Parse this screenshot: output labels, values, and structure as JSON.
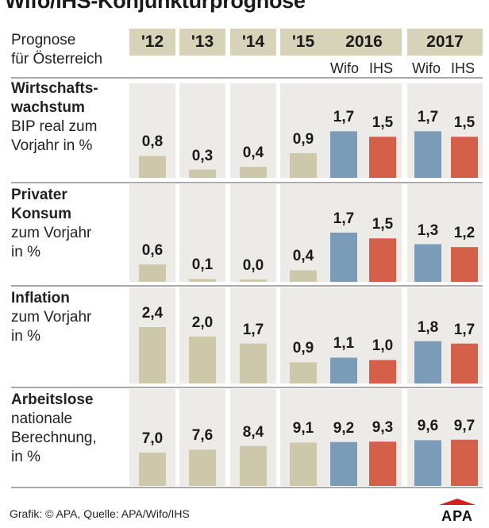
{
  "title": "Wifo/IHS-Konjunkturprognose",
  "header_label": [
    "Prognose",
    "für Österreich"
  ],
  "years": [
    "'12",
    "'13",
    "'14",
    "'15",
    "2016",
    "2017"
  ],
  "institutes": [
    "Wifo",
    "IHS",
    "Wifo",
    "IHS"
  ],
  "colors": {
    "panel_bg": "#ecebe8",
    "historic": "#cdc8aa",
    "wifo": "#7b9cb8",
    "ihs": "#d5604a",
    "year_box": "#d7d3b9"
  },
  "chart_data": {
    "type": "bar",
    "title": "Wifo/IHS-Konjunkturprognose",
    "categories": [
      "'12",
      "'13",
      "'14",
      "'15",
      "2016 Wifo",
      "2016 IHS",
      "2017 Wifo",
      "2017 IHS"
    ],
    "rows": [
      {
        "label_bold": [
          "Wirtschafts-",
          "wachstum"
        ],
        "label_normal": [
          "BIP real zum",
          "Vorjahr in %"
        ],
        "values": [
          0.8,
          0.3,
          0.4,
          0.9,
          1.7,
          1.5,
          1.7,
          1.5
        ],
        "display": [
          "0,8",
          "0,3",
          "0,4",
          "0,9",
          "1,7",
          "1,5",
          "1,7",
          "1,5"
        ],
        "ymax": 2.0
      },
      {
        "label_bold": [
          "Privater",
          "Konsum"
        ],
        "label_normal": [
          "zum Vorjahr",
          "in %"
        ],
        "values": [
          0.6,
          0.1,
          0.0,
          0.4,
          1.7,
          1.5,
          1.3,
          1.2
        ],
        "display": [
          "0,6",
          "0,1",
          "0,0",
          "0,4",
          "1,7",
          "1,5",
          "1,3",
          "1,2"
        ],
        "ymax": 2.0
      },
      {
        "label_bold": [
          "Inflation"
        ],
        "label_normal": [
          "zum Vorjahr",
          "in %"
        ],
        "values": [
          2.4,
          2.0,
          1.7,
          0.9,
          1.1,
          1.0,
          1.8,
          1.7
        ],
        "display": [
          "2,4",
          "2,0",
          "1,7",
          "0,9",
          "1,1",
          "1,0",
          "1,8",
          "1,7"
        ],
        "ymax": 2.4
      },
      {
        "label_bold": [
          "Arbeitslose"
        ],
        "label_normal": [
          "nationale",
          "Berechnung,",
          "in %"
        ],
        "values": [
          7.0,
          7.6,
          8.4,
          9.1,
          9.2,
          9.3,
          9.6,
          9.7
        ],
        "display": [
          "7,0",
          "7,6",
          "8,4",
          "9,1",
          "9,2",
          "9,3",
          "9,6",
          "9,7"
        ],
        "ymax": 12.0
      }
    ]
  },
  "footer": "Grafik: © APA, Quelle: APA/Wifo/IHS",
  "logo_text": "APA"
}
